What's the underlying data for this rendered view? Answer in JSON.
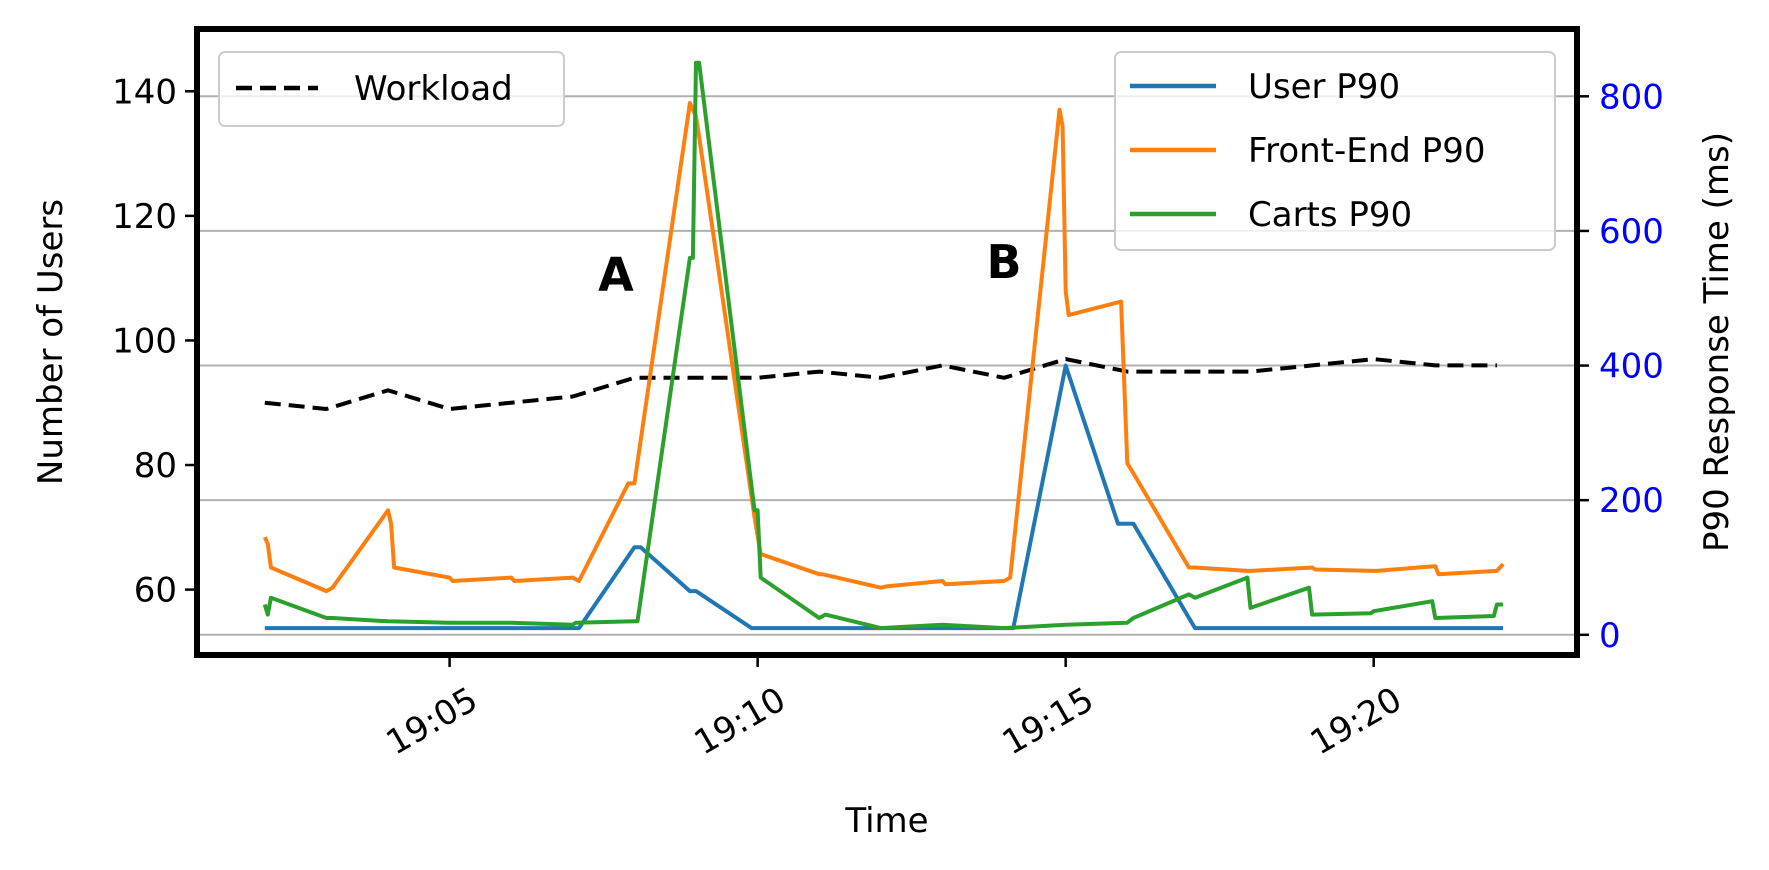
{
  "chart_data": {
    "type": "line",
    "title": "",
    "xlabel": "Time",
    "ylabel_left": "Number of Users",
    "ylabel_right": "P90 Response Time (ms)",
    "right_axis_color": "#0000ff",
    "x_ticks": [
      "19:05",
      "19:10",
      "19:15",
      "19:20"
    ],
    "x_tick_minutes": [
      5,
      10,
      15,
      20
    ],
    "xlim_minutes": [
      0.9,
      23.3
    ],
    "ylim_left": [
      49.5,
      150
    ],
    "yticks_left": [
      60,
      80,
      100,
      120,
      140
    ],
    "ylim_right": [
      -30,
      900
    ],
    "yticks_right": [
      0,
      200,
      400,
      600,
      800
    ],
    "grid": "horizontal at right-axis ticks",
    "legend_left": {
      "placement": "upper-left",
      "entries": [
        "Workload"
      ]
    },
    "legend_right": {
      "placement": "upper-right",
      "entries": [
        "User P90",
        "Front-End P90",
        "Carts P90"
      ]
    },
    "annotations": [
      {
        "text": "A",
        "x_minute": 7.7,
        "y_left": 108
      },
      {
        "text": "B",
        "x_minute": 14.0,
        "y_left": 110
      }
    ],
    "series": [
      {
        "name": "Workload",
        "axis": "left",
        "color": "#000000",
        "dash": "dashed",
        "x": [
          2,
          3,
          4,
          5,
          6,
          7,
          8,
          9,
          10,
          11,
          12,
          13,
          14,
          15,
          16,
          17,
          18,
          19,
          20,
          21,
          22
        ],
        "y": [
          90,
          89,
          92,
          89,
          90,
          91,
          94,
          94,
          94,
          95,
          94,
          96,
          94,
          97,
          95,
          95,
          95,
          96,
          97,
          96,
          96
        ]
      },
      {
        "name": "User P90",
        "axis": "right",
        "color": "#1f77b4",
        "x": [
          2,
          7.1,
          8,
          8.1,
          8.9,
          9,
          9.9,
          14.15,
          15.0,
          15.85,
          16.1,
          17.1,
          22.1
        ],
        "y": [
          10,
          10,
          130,
          130,
          65,
          65,
          10,
          10,
          400,
          165,
          165,
          10,
          10
        ]
      },
      {
        "name": "Front-End P90",
        "axis": "right",
        "color": "#ff7f0e",
        "x": [
          2,
          2.05,
          2.1,
          3.0,
          3.1,
          4.0,
          4.05,
          4.1,
          5.0,
          5.05,
          6.0,
          6.05,
          7.0,
          7.1,
          7.9,
          8.0,
          8.9,
          9.0,
          9.05,
          9.95,
          10.05,
          11.0,
          11.05,
          12.0,
          12.1,
          13.0,
          13.05,
          14.0,
          14.1,
          14.9,
          14.95,
          15.0,
          15.05,
          15.9,
          16.0,
          16.1,
          17.0,
          17.1,
          17.95,
          18.0,
          19.0,
          19.05,
          20.0,
          20.05,
          21.0,
          21.05,
          22.0,
          22.1
        ],
        "y": [
          145,
          135,
          100,
          65,
          70,
          185,
          165,
          100,
          85,
          80,
          85,
          80,
          85,
          80,
          225,
          225,
          790,
          770,
          740,
          175,
          120,
          90,
          90,
          70,
          72,
          80,
          75,
          80,
          85,
          780,
          755,
          510,
          475,
          495,
          255,
          240,
          100,
          100,
          95,
          95,
          100,
          97,
          95,
          95,
          102,
          90,
          95,
          105
        ]
      },
      {
        "name": "Carts P90",
        "axis": "right",
        "color": "#2ca02c",
        "x": [
          2.0,
          2.05,
          2.1,
          3.0,
          3.1,
          4.0,
          5.0,
          6.0,
          7.0,
          7.05,
          8.0,
          8.05,
          8.9,
          8.95,
          9.0,
          9.05,
          9.95,
          10.0,
          10.05,
          11.0,
          11.1,
          12.0,
          13.0,
          14.0,
          15.0,
          16.0,
          16.1,
          17.0,
          17.1,
          17.95,
          18.0,
          18.95,
          19.0,
          19.95,
          20.0,
          20.95,
          21.0,
          21.95,
          22.0,
          22.1
        ],
        "y": [
          45,
          30,
          55,
          25,
          25,
          20,
          18,
          18,
          15,
          18,
          20,
          20,
          560,
          560,
          850,
          850,
          185,
          185,
          85,
          25,
          30,
          10,
          15,
          10,
          15,
          18,
          25,
          60,
          55,
          85,
          40,
          70,
          30,
          32,
          35,
          50,
          25,
          28,
          45,
          45
        ]
      }
    ]
  }
}
